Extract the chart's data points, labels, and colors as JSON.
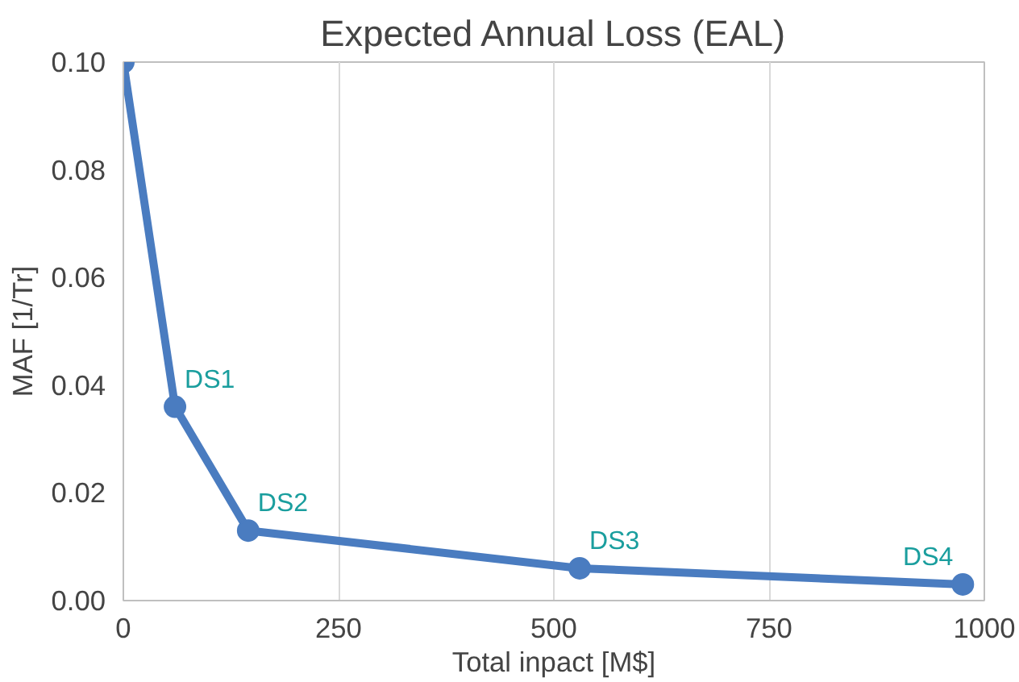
{
  "chart_data": {
    "type": "line",
    "title": "Expected Annual Loss (EAL)",
    "xlabel": "Total inpact [M$]",
    "ylabel": "MAF [1/Tr]",
    "x": [
      0,
      60,
      145,
      530,
      975
    ],
    "series": [
      {
        "color": "#4a7cc0",
        "values": [
          0.1,
          0.036,
          0.013,
          0.006,
          0.003
        ]
      }
    ],
    "xlim": [
      0,
      1000
    ],
    "xticks": [
      0,
      250,
      500,
      750,
      1000
    ],
    "ylim": [
      0,
      0.1
    ],
    "yticks": [
      {
        "value": 0,
        "label": "0.00"
      },
      {
        "value": 0.02,
        "label": "0.02"
      },
      {
        "value": 0.04,
        "label": "0.04"
      },
      {
        "value": 0.06,
        "label": "0.06"
      },
      {
        "value": 0.08,
        "label": "0.08"
      },
      {
        "value": 0.1,
        "label": "0.10"
      }
    ],
    "annotations": [
      {
        "text": "DS1",
        "x": 60,
        "y": 0.036
      },
      {
        "text": "DS2",
        "x": 145,
        "y": 0.013
      },
      {
        "text": "DS3",
        "x": 530,
        "y": 0.006
      },
      {
        "text": "DS4",
        "x": 975,
        "y": 0.003
      }
    ],
    "grid": "x",
    "marker": "circle",
    "line_style": "solid"
  }
}
